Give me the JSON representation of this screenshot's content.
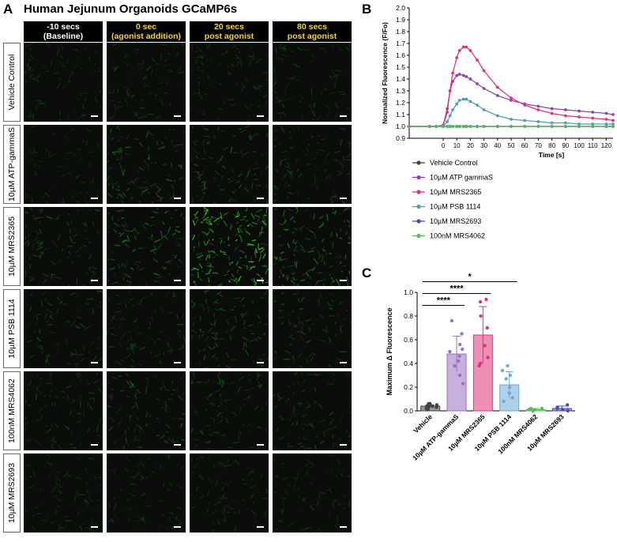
{
  "panel_a": {
    "letter": "A",
    "title": "Human Jejunum Organoids GCaMP6s",
    "columns": [
      {
        "line1": "-10 secs",
        "line2": "(Baseline)",
        "color": "#ffffff"
      },
      {
        "line1": "0 sec",
        "line2": "(agonist addition)",
        "color": "#f5d23a"
      },
      {
        "line1": "20 secs",
        "line2": "post agonist",
        "color": "#f5d23a"
      },
      {
        "line1": "80 secs",
        "line2": "post agonist",
        "color": "#f5d23a"
      }
    ],
    "rows": [
      {
        "label": "Vehicle Control",
        "brightness": [
          0.25,
          0.25,
          0.25,
          0.25
        ]
      },
      {
        "label": "10µM ATP-gammaS",
        "brightness": [
          0.15,
          0.45,
          0.4,
          0.3
        ]
      },
      {
        "label": "10µM MRS2365",
        "brightness": [
          0.35,
          0.5,
          0.95,
          0.6
        ]
      },
      {
        "label": "10µM PSB 1114",
        "brightness": [
          0.3,
          0.3,
          0.4,
          0.35
        ]
      },
      {
        "label": "100nM MRS4062",
        "brightness": [
          0.3,
          0.35,
          0.3,
          0.3
        ]
      },
      {
        "label": "10µM MRS2693",
        "brightness": [
          0.2,
          0.2,
          0.2,
          0.2
        ]
      }
    ]
  },
  "chart_data": [
    {
      "panel": "B",
      "type": "line",
      "ylabel": "Normalized Fluorescence  (F/Fo)",
      "xlabel": "Time [s]",
      "xlim": [
        -25,
        125
      ],
      "ylim": [
        0.9,
        2.0
      ],
      "xticks": [
        0,
        10,
        20,
        30,
        40,
        50,
        60,
        70,
        80,
        90,
        100,
        110,
        120
      ],
      "yticks": [
        0.9,
        1.0,
        1.1,
        1.2,
        1.3,
        1.4,
        1.5,
        1.6,
        1.7,
        1.8,
        1.9,
        2.0
      ],
      "x": [
        -25,
        -10,
        -5,
        0,
        3,
        5,
        7,
        10,
        12,
        15,
        17,
        20,
        25,
        30,
        40,
        50,
        60,
        70,
        80,
        90,
        100,
        110,
        120,
        125
      ],
      "series": [
        {
          "name": "Vehicle Control",
          "color": "#444444",
          "values": [
            1.0,
            1.0,
            1.0,
            1.0,
            1.0,
            1.0,
            1.0,
            1.0,
            1.0,
            1.0,
            1.0,
            1.0,
            1.0,
            1.0,
            1.0,
            1.0,
            1.0,
            1.0,
            1.0,
            1.0,
            1.0,
            1.0,
            1.0,
            1.0
          ]
        },
        {
          "name": "10µM ATP gammaS",
          "color": "#8e44ad",
          "values": [
            1.0,
            1.0,
            1.0,
            1.01,
            1.15,
            1.3,
            1.38,
            1.43,
            1.44,
            1.43,
            1.42,
            1.4,
            1.36,
            1.32,
            1.26,
            1.22,
            1.19,
            1.17,
            1.15,
            1.14,
            1.13,
            1.12,
            1.11,
            1.1
          ]
        },
        {
          "name": "10µM MRS2365",
          "color": "#e0337a",
          "values": [
            1.0,
            1.0,
            1.0,
            1.01,
            1.12,
            1.3,
            1.45,
            1.58,
            1.64,
            1.67,
            1.67,
            1.64,
            1.56,
            1.47,
            1.33,
            1.24,
            1.18,
            1.14,
            1.11,
            1.09,
            1.08,
            1.07,
            1.06,
            1.05
          ]
        },
        {
          "name": "10µM PSB 1114",
          "color": "#4aa0b8",
          "values": [
            1.0,
            1.0,
            1.0,
            1.0,
            1.04,
            1.09,
            1.14,
            1.19,
            1.22,
            1.23,
            1.23,
            1.21,
            1.18,
            1.14,
            1.09,
            1.06,
            1.05,
            1.04,
            1.03,
            1.03,
            1.02,
            1.02,
            1.02,
            1.02
          ]
        },
        {
          "name": "10µM MRS2693",
          "color": "#4a4aa8",
          "values": [
            1.0,
            1.0,
            1.0,
            1.0,
            1.0,
            1.0,
            1.0,
            1.0,
            1.0,
            1.0,
            1.0,
            1.0,
            1.0,
            1.0,
            1.0,
            1.0,
            1.0,
            1.0,
            1.0,
            1.0,
            1.0,
            1.0,
            1.0,
            1.0
          ]
        },
        {
          "name": "100nM MRS4062",
          "color": "#5cb85c",
          "values": [
            1.0,
            1.0,
            1.0,
            1.0,
            1.0,
            1.0,
            1.0,
            1.0,
            1.0,
            1.0,
            1.0,
            1.0,
            1.0,
            1.0,
            1.0,
            1.0,
            1.0,
            1.0,
            1.0,
            1.0,
            1.0,
            1.0,
            1.0,
            1.0
          ]
        }
      ]
    },
    {
      "panel": "C",
      "type": "bar",
      "ylabel": "Maximum Δ Fluorescence",
      "ylim": [
        0,
        1.0
      ],
      "yticks": [
        0.0,
        0.2,
        0.4,
        0.6,
        0.8,
        1.0
      ],
      "categories": [
        "Vehicle",
        "10µM ATP-gammaS",
        "10µM MRS2365",
        "10µM PSB 1114",
        "100nM MRS4062",
        "10µM MRS2693"
      ],
      "values": [
        0.04,
        0.48,
        0.64,
        0.22,
        0.01,
        0.02
      ],
      "errors": [
        0.01,
        0.15,
        0.24,
        0.11,
        0.01,
        0.02
      ],
      "colors": [
        "#444444",
        "#9b6fc2",
        "#e0337a",
        "#6fa9d6",
        "#5cb85c",
        "#4a4aa8"
      ],
      "points": [
        [
          0.01,
          0.02,
          0.03,
          0.03,
          0.04,
          0.04,
          0.05,
          0.05,
          0.06,
          0.06
        ],
        [
          0.23,
          0.3,
          0.38,
          0.42,
          0.46,
          0.5,
          0.52,
          0.56,
          0.65,
          0.76
        ],
        [
          0.38,
          0.4,
          0.45,
          0.55,
          0.7,
          0.8,
          0.92,
          0.94
        ],
        [
          0.08,
          0.11,
          0.15,
          0.2,
          0.27,
          0.3,
          0.34,
          0.38
        ],
        [
          0.0,
          0.01,
          0.01,
          0.02,
          0.02
        ],
        [
          0.0,
          0.01,
          0.02,
          0.03,
          0.05
        ]
      ],
      "significance": [
        {
          "label": "****",
          "from": 0,
          "to": 1
        },
        {
          "label": "****",
          "from": 0,
          "to": 2
        },
        {
          "label": "*",
          "from": 0,
          "to": 3
        }
      ]
    }
  ]
}
